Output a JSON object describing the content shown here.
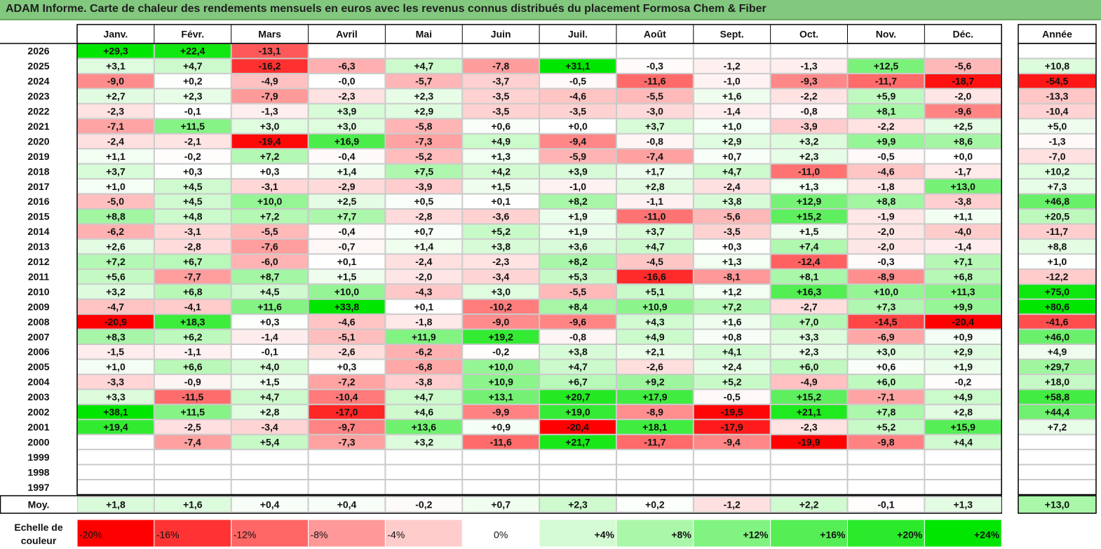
{
  "title": "ADAM Informe. Carte de chaleur des rendements mensuels en euros avec les revenus connus distribués du placement Formosa Chem & Fiber",
  "chart_data": {
    "type": "heatmap",
    "title": "ADAM Informe. Carte de chaleur des rendements mensuels en euros avec les revenus connus distribués du placement Formosa Chem & Fiber",
    "months": [
      "Janv.",
      "Févr.",
      "Mars",
      "Avril",
      "Mai",
      "Juin",
      "Juil.",
      "Août",
      "Sept.",
      "Oct.",
      "Nov.",
      "Déc."
    ],
    "year_header": "Année",
    "rows": [
      {
        "year": "2026",
        "months": [
          "+29,3",
          "+22,4",
          "-13,1",
          "",
          "",
          "",
          "",
          "",
          "",
          "",
          "",
          ""
        ],
        "annual": ""
      },
      {
        "year": "2025",
        "months": [
          "+3,1",
          "+4,7",
          "-16,2",
          "-6,3",
          "+4,7",
          "-7,8",
          "+31,1",
          "-0,3",
          "-1,2",
          "-1,3",
          "+12,5",
          "-5,6"
        ],
        "annual": "+10,8"
      },
      {
        "year": "2024",
        "months": [
          "-9,0",
          "+0,2",
          "-4,9",
          "-0,0",
          "-5,7",
          "-3,7",
          "-0,5",
          "-11,6",
          "-1,0",
          "-9,3",
          "-11,7",
          "-18,7"
        ],
        "annual": "-54,5"
      },
      {
        "year": "2023",
        "months": [
          "+2,7",
          "+2,3",
          "-7,9",
          "-2,3",
          "+2,3",
          "-3,5",
          "-4,6",
          "-5,5",
          "+1,6",
          "-2,2",
          "+5,9",
          "-2,0"
        ],
        "annual": "-13,3"
      },
      {
        "year": "2022",
        "months": [
          "-2,3",
          "-0,1",
          "-1,3",
          "+3,9",
          "+2,9",
          "-3,5",
          "-3,5",
          "-3,0",
          "-1,4",
          "-0,8",
          "+8,1",
          "-9,6"
        ],
        "annual": "-10,4"
      },
      {
        "year": "2021",
        "months": [
          "-7,1",
          "+11,5",
          "+3,0",
          "+3,0",
          "-5,8",
          "+0,6",
          "+0,0",
          "+3,7",
          "+1,0",
          "-3,9",
          "-2,2",
          "+2,5"
        ],
        "annual": "+5,0"
      },
      {
        "year": "2020",
        "months": [
          "-2,4",
          "-2,1",
          "-19,4",
          "+16,9",
          "-7,3",
          "+4,9",
          "-9,4",
          "-0,8",
          "+2,9",
          "+3,2",
          "+9,9",
          "+8,6"
        ],
        "annual": "-1,3"
      },
      {
        "year": "2019",
        "months": [
          "+1,1",
          "-0,2",
          "+7,2",
          "-0,4",
          "-5,2",
          "+1,3",
          "-5,9",
          "-7,4",
          "+0,7",
          "+2,3",
          "-0,5",
          "+0,0"
        ],
        "annual": "-7,0"
      },
      {
        "year": "2018",
        "months": [
          "+3,7",
          "+0,3",
          "+0,3",
          "+1,4",
          "+7,5",
          "+4,2",
          "+3,9",
          "+1,7",
          "+4,7",
          "-11,0",
          "-4,6",
          "-1,7"
        ],
        "annual": "+10,2"
      },
      {
        "year": "2017",
        "months": [
          "+1,0",
          "+4,5",
          "-3,1",
          "-2,9",
          "-3,9",
          "+1,5",
          "-1,0",
          "+2,8",
          "-2,4",
          "+1,3",
          "-1,8",
          "+13,0"
        ],
        "annual": "+7,3"
      },
      {
        "year": "2016",
        "months": [
          "-5,0",
          "+4,5",
          "+10,0",
          "+2,5",
          "+0,5",
          "+0,1",
          "+8,2",
          "-1,1",
          "+3,8",
          "+12,9",
          "+8,8",
          "-3,8"
        ],
        "annual": "+46,8"
      },
      {
        "year": "2015",
        "months": [
          "+8,8",
          "+4,8",
          "+7,2",
          "+7,7",
          "-2,8",
          "-3,6",
          "+1,9",
          "-11,0",
          "-5,6",
          "+15,2",
          "-1,9",
          "+1,1"
        ],
        "annual": "+20,5"
      },
      {
        "year": "2014",
        "months": [
          "-6,2",
          "-3,1",
          "-5,5",
          "-0,4",
          "+0,7",
          "+5,2",
          "+1,9",
          "+3,7",
          "-3,5",
          "+1,5",
          "-2,0",
          "-4,0"
        ],
        "annual": "-11,7"
      },
      {
        "year": "2013",
        "months": [
          "+2,6",
          "-2,8",
          "-7,6",
          "-0,7",
          "+1,4",
          "+3,8",
          "+3,6",
          "+4,7",
          "+0,3",
          "+7,4",
          "-2,0",
          "-1,4"
        ],
        "annual": "+8,8"
      },
      {
        "year": "2012",
        "months": [
          "+7,2",
          "+6,7",
          "-6,0",
          "+0,1",
          "-2,4",
          "-2,3",
          "+8,2",
          "-4,5",
          "+1,3",
          "-12,4",
          "-0,3",
          "+7,1"
        ],
        "annual": "+1,0"
      },
      {
        "year": "2011",
        "months": [
          "+5,6",
          "-7,7",
          "+8,7",
          "+1,5",
          "-2,0",
          "-3,4",
          "+5,3",
          "-16,6",
          "-8,1",
          "+8,1",
          "-8,9",
          "+6,8"
        ],
        "annual": "-12,2"
      },
      {
        "year": "2010",
        "months": [
          "+3,2",
          "+6,8",
          "+4,5",
          "+10,0",
          "-4,3",
          "+3,0",
          "-5,5",
          "+5,1",
          "+1,2",
          "+16,3",
          "+10,0",
          "+11,3"
        ],
        "annual": "+75,0"
      },
      {
        "year": "2009",
        "months": [
          "-4,7",
          "-4,1",
          "+11,6",
          "+33,8",
          "+0,1",
          "-10,2",
          "+8,4",
          "+10,9",
          "+7,2",
          "-2,7",
          "+7,3",
          "+9,9"
        ],
        "annual": "+80,6"
      },
      {
        "year": "2008",
        "months": [
          "-20,9",
          "+18,3",
          "+0,3",
          "-4,6",
          "-1,8",
          "-9,0",
          "-9,6",
          "+4,3",
          "+1,6",
          "+7,0",
          "-14,5",
          "-20,4"
        ],
        "annual": "-41,6"
      },
      {
        "year": "2007",
        "months": [
          "+8,3",
          "+6,2",
          "-1,4",
          "-5,1",
          "+11,9",
          "+19,2",
          "-0,8",
          "+4,9",
          "+0,8",
          "+3,3",
          "-6,9",
          "+0,9"
        ],
        "annual": "+46,0"
      },
      {
        "year": "2006",
        "months": [
          "-1,5",
          "-1,1",
          "-0,1",
          "-2,6",
          "-6,2",
          "-0,2",
          "+3,8",
          "+2,1",
          "+4,1",
          "+2,3",
          "+3,0",
          "+2,9"
        ],
        "annual": "+4,9"
      },
      {
        "year": "2005",
        "months": [
          "+1,0",
          "+6,6",
          "+4,0",
          "+0,3",
          "-6,8",
          "+10,0",
          "+4,7",
          "-2,6",
          "+2,4",
          "+6,0",
          "+0,6",
          "+1,9"
        ],
        "annual": "+29,7"
      },
      {
        "year": "2004",
        "months": [
          "-3,3",
          "-0,9",
          "+1,5",
          "-7,2",
          "-3,8",
          "+10,9",
          "+6,7",
          "+9,2",
          "+5,2",
          "-4,9",
          "+6,0",
          "-0,2"
        ],
        "annual": "+18,0"
      },
      {
        "year": "2003",
        "months": [
          "+3,3",
          "-11,5",
          "+4,7",
          "-10,4",
          "+4,7",
          "+13,1",
          "+20,7",
          "+17,9",
          "-0,5",
          "+15,2",
          "-7,1",
          "+4,9"
        ],
        "annual": "+58,8"
      },
      {
        "year": "2002",
        "months": [
          "+38,1",
          "+11,5",
          "+2,8",
          "-17,0",
          "+4,6",
          "-9,9",
          "+19,0",
          "-8,9",
          "-19,5",
          "+21,1",
          "+7,8",
          "+2,8"
        ],
        "annual": "+44,4"
      },
      {
        "year": "2001",
        "months": [
          "+19,4",
          "-2,5",
          "-3,4",
          "-9,7",
          "+13,6",
          "+0,9",
          "-20,4",
          "+18,1",
          "-17,9",
          "-2,3",
          "+5,2",
          "+15,9"
        ],
        "annual": "+7,2"
      },
      {
        "year": "2000",
        "months": [
          "",
          "-7,4",
          "+5,4",
          "-7,3",
          "+3,2",
          "-11,6",
          "+21,7",
          "-11,7",
          "-9,4",
          "-19,9",
          "-9,8",
          "+4,4"
        ],
        "annual": ""
      },
      {
        "year": "1999",
        "months": [
          "",
          "",
          "",
          "",
          "",
          "",
          "",
          "",
          "",
          "",
          "",
          ""
        ],
        "annual": ""
      },
      {
        "year": "1998",
        "months": [
          "",
          "",
          "",
          "",
          "",
          "",
          "",
          "",
          "",
          "",
          "",
          ""
        ],
        "annual": ""
      },
      {
        "year": "1997",
        "months": [
          "",
          "",
          "",
          "",
          "",
          "",
          "",
          "",
          "",
          "",
          "",
          ""
        ],
        "annual": ""
      }
    ],
    "average": {
      "label": "Moy.",
      "months": [
        "+1,8",
        "+1,6",
        "+0,4",
        "+0,4",
        "-0,2",
        "+0,7",
        "+2,3",
        "+0,2",
        "-1,2",
        "+2,2",
        "-0,1",
        "+1,3"
      ],
      "annual": "+13,0"
    },
    "scale": {
      "label_line1": "Echelle de",
      "label_line2": "couleur",
      "steps": [
        {
          "label": "-20%",
          "value": -20,
          "align": "left"
        },
        {
          "label": "-16%",
          "value": -16,
          "align": "left"
        },
        {
          "label": "-12%",
          "value": -12,
          "align": "left"
        },
        {
          "label": "-8%",
          "value": -8,
          "align": "left"
        },
        {
          "label": "-4%",
          "value": -4,
          "align": "left"
        },
        {
          "label": "0%",
          "value": 0,
          "align": "center"
        },
        {
          "label": "+4%",
          "value": 4,
          "align": "right"
        },
        {
          "label": "+8%",
          "value": 8,
          "align": "right"
        },
        {
          "label": "+12%",
          "value": 12,
          "align": "right"
        },
        {
          "label": "+16%",
          "value": 16,
          "align": "right"
        },
        {
          "label": "+20%",
          "value": 20,
          "align": "right"
        },
        {
          "label": "+24%",
          "value": 24,
          "align": "right"
        }
      ]
    },
    "color_scale": {
      "negative_max": "#ff0000",
      "positive_max": "#00e600",
      "neutral": "#ffffff"
    }
  }
}
